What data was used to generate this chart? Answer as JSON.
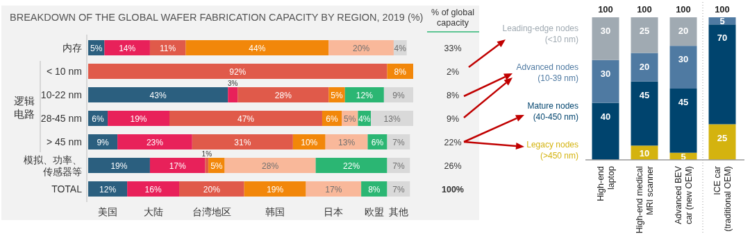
{
  "chart_data": [
    {
      "type": "bar",
      "orientation": "horizontal",
      "stacked": true,
      "title": "BREAKDOWN OF THE GLOBAL WAFER FABRICATION CAPACITY BY REGION, 2019 (%)",
      "categories": [
        "内存",
        "< 10 nm",
        "10-22 nm",
        "28-45 nm",
        "> 45 nm",
        "模拟、功率、传感器等",
        "TOTAL"
      ],
      "series": [
        {
          "name": "美国",
          "color": "#2b5f7f",
          "values": [
            5,
            null,
            43,
            6,
            9,
            19,
            12
          ],
          "value_labels": [
            "5%",
            null,
            "43%",
            "6%",
            "9%",
            "19%",
            "12%"
          ]
        },
        {
          "name": "大陆",
          "color": "#e8215a",
          "values": [
            14,
            null,
            3,
            19,
            23,
            17,
            16
          ],
          "value_labels": [
            "14%",
            null,
            "3%",
            "19%",
            "23%",
            "17%",
            "16%"
          ]
        },
        {
          "name": "台湾地区",
          "color": "#e05a4a",
          "values": [
            11,
            92,
            28,
            47,
            31,
            1,
            20
          ],
          "value_labels": [
            "11%",
            "92%",
            "28%",
            "47%",
            "31%",
            "1%",
            "20%"
          ]
        },
        {
          "name": "韩国",
          "color": "#f2870a",
          "values": [
            44,
            8,
            5,
            6,
            10,
            5,
            19
          ],
          "value_labels": [
            "44%",
            "8%",
            "5%",
            "6%",
            "10%",
            "5%",
            "19%"
          ]
        },
        {
          "name": "日本",
          "color": "#f9b89a",
          "values": [
            20,
            null,
            null,
            5,
            13,
            28,
            17
          ],
          "value_labels": [
            "20%",
            null,
            null,
            "5%",
            "13%",
            "28%",
            "17%"
          ]
        },
        {
          "name": "欧盟",
          "color": "#2bb673",
          "values": [
            null,
            null,
            12,
            4,
            6,
            22,
            8
          ],
          "value_labels": [
            null,
            null,
            "12%",
            "4%",
            "6%",
            "22%",
            "8%"
          ]
        },
        {
          "name": "其他",
          "color": "#d9d9d9",
          "values": [
            4,
            null,
            9,
            13,
            7,
            7,
            7
          ],
          "value_labels": [
            "4%",
            null,
            "9%",
            "13%",
            "7%",
            "7%",
            "7%"
          ]
        }
      ],
      "legend": "bottom",
      "annotations": [
        "逻辑电路",
        "% of global capacity",
        "33%",
        "2%",
        "8%",
        "9%",
        "22%",
        "26%",
        "100%"
      ]
    },
    {
      "type": "bar",
      "stacked": true,
      "categories": [
        "High-end laptop",
        "High-end medical MRI scanner",
        "Advanced BEV car (new OEM)",
        "ICE car (traditional OEM)"
      ],
      "series": [
        {
          "name": "Legacy nodes (>450 nm)",
          "color": "#d4b30f",
          "values": [
            null,
            10,
            5,
            25
          ]
        },
        {
          "name": "Mature nodes (40-450 nm)",
          "color": "#00446e",
          "values": [
            40,
            45,
            45,
            70
          ]
        },
        {
          "name": "Advanced nodes (10-39 nm)",
          "color": "#4f7aa2",
          "values": [
            30,
            20,
            30,
            5
          ]
        },
        {
          "name": "Leading-edge nodes (<10 nm)",
          "color": "#a0aab2",
          "values": [
            30,
            25,
            20,
            null
          ]
        }
      ],
      "data_labels": true,
      "totals": [
        "100",
        "100",
        "100",
        "100"
      ],
      "legend": "left"
    }
  ]
}
